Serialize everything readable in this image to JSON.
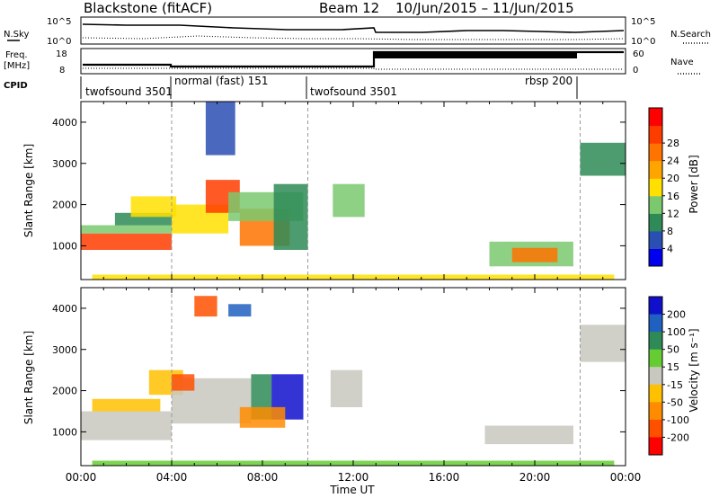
{
  "header": {
    "title": "Blackstone (fitACF)",
    "beam": "Beam 12",
    "date_range": "10/Jun/2015 – 11/Jun/2015"
  },
  "noise_panel": {
    "left_label": "N.Sky",
    "right_label": "N.Search",
    "left_ticks": [
      "10^5",
      "10^0"
    ],
    "right_ticks": [
      "10^5",
      "10^0"
    ]
  },
  "freq_panel": {
    "left_label_line1": "Freq.",
    "left_label_line2": "[MHz]",
    "right_label": "Nave",
    "left_ticks": [
      "18",
      "8"
    ],
    "right_ticks": [
      "60",
      "0"
    ]
  },
  "cpid_panel": {
    "label": "CPID",
    "segments": [
      {
        "start": 0,
        "end": 4,
        "name": "twofsound 3501"
      },
      {
        "start": 4,
        "end": 10,
        "name": "normal (fast) 151"
      },
      {
        "start": 10,
        "end": 22,
        "name": "twofsound 3501"
      },
      {
        "start": 22,
        "end": 24,
        "name": "rbsp 200"
      }
    ]
  },
  "colorbars": {
    "power": {
      "label": "Power [dB]",
      "ticks": [
        "4",
        "8",
        "12",
        "16",
        "20",
        "24",
        "28"
      ],
      "colors": [
        "#0000ee",
        "#2a4fb3",
        "#2e8b57",
        "#7bc96f",
        "#ffe000",
        "#ffa500",
        "#ff7300",
        "#ff3c00",
        "#ff0000"
      ]
    },
    "velocity": {
      "label": "Velocity [m s⁻¹]",
      "ticks": [
        "200",
        "100",
        "50",
        "15",
        "-15",
        "-50",
        "-100",
        "-200"
      ],
      "colors": [
        "#1010cc",
        "#2060c0",
        "#2e8b57",
        "#66cc33",
        "#c8c8c0",
        "#ffc000",
        "#ff8c00",
        "#ff5000",
        "#ff0000"
      ]
    }
  },
  "chart_data": [
    {
      "type": "heatmap",
      "title": "",
      "xlabel": "",
      "ylabel": "Slant Range [km]",
      "xlim": [
        0,
        24
      ],
      "ylim": [
        180,
        4500
      ],
      "x_tick_hours": [
        0,
        4,
        8,
        12,
        16,
        20,
        24
      ],
      "y_ticks": [
        1000,
        2000,
        3000,
        4000
      ],
      "colorbar": "Power [dB]",
      "regions": [
        {
          "t0": 0.0,
          "t1": 4.0,
          "r0": 900,
          "r1": 1300,
          "value": 28
        },
        {
          "t0": 0.0,
          "t1": 4.0,
          "r0": 1300,
          "r1": 1500,
          "value": 12
        },
        {
          "t0": 1.5,
          "t1": 4.0,
          "r0": 1500,
          "r1": 1800,
          "value": 10
        },
        {
          "t0": 2.2,
          "t1": 4.2,
          "r0": 1700,
          "r1": 2200,
          "value": 16
        },
        {
          "t0": 4.0,
          "t1": 6.5,
          "r0": 1300,
          "r1": 2000,
          "value": 16
        },
        {
          "t0": 5.5,
          "t1": 7.0,
          "r0": 1800,
          "r1": 2600,
          "value": 28
        },
        {
          "t0": 7.0,
          "t1": 9.2,
          "r0": 1000,
          "r1": 1900,
          "value": 24
        },
        {
          "t0": 6.5,
          "t1": 9.8,
          "r0": 1600,
          "r1": 2300,
          "value": 12
        },
        {
          "t0": 8.5,
          "t1": 10.0,
          "r0": 900,
          "r1": 2500,
          "value": 8
        },
        {
          "t0": 5.5,
          "t1": 6.8,
          "r0": 3200,
          "r1": 4500,
          "value": 6
        },
        {
          "t0": 11.1,
          "t1": 12.5,
          "r0": 1700,
          "r1": 2500,
          "value": 14
        },
        {
          "t0": 18.0,
          "t1": 21.7,
          "r0": 500,
          "r1": 1100,
          "value": 12
        },
        {
          "t0": 19.0,
          "t1": 21.0,
          "r0": 600,
          "r1": 950,
          "value": 26
        },
        {
          "t0": 22.0,
          "t1": 24.0,
          "r0": 2700,
          "r1": 3500,
          "value": 8
        },
        {
          "t0": 0.5,
          "t1": 23.5,
          "r0": 180,
          "r1": 300,
          "value": 16
        }
      ]
    },
    {
      "type": "heatmap",
      "title": "",
      "xlabel": "Time UT",
      "ylabel": "Slant Range [km]",
      "xlim": [
        0,
        24
      ],
      "ylim": [
        180,
        4500
      ],
      "x_tick_labels": [
        "00:00",
        "04:00",
        "08:00",
        "12:00",
        "16:00",
        "20:00",
        "00:00"
      ],
      "y_ticks": [
        1000,
        2000,
        3000,
        4000
      ],
      "colorbar": "Velocity [m s⁻¹]",
      "regions": [
        {
          "t0": 0.0,
          "t1": 4.0,
          "r0": 800,
          "r1": 1500,
          "value": 0
        },
        {
          "t0": 0.5,
          "t1": 3.5,
          "r0": 1500,
          "r1": 1800,
          "value": -30
        },
        {
          "t0": 3.0,
          "t1": 4.5,
          "r0": 1900,
          "r1": 2500,
          "value": -40
        },
        {
          "t0": 4.0,
          "t1": 7.5,
          "r0": 1200,
          "r1": 2300,
          "value": 0
        },
        {
          "t0": 4.0,
          "t1": 5.0,
          "r0": 2000,
          "r1": 2400,
          "value": -150
        },
        {
          "t0": 7.5,
          "t1": 8.4,
          "r0": 1300,
          "r1": 2400,
          "value": 60
        },
        {
          "t0": 8.4,
          "t1": 9.8,
          "r0": 1300,
          "r1": 2400,
          "value": 200
        },
        {
          "t0": 7.0,
          "t1": 9.0,
          "r0": 1100,
          "r1": 1600,
          "value": -80
        },
        {
          "t0": 6.5,
          "t1": 7.5,
          "r0": 3800,
          "r1": 4100,
          "value": 150
        },
        {
          "t0": 5.0,
          "t1": 6.0,
          "r0": 3800,
          "r1": 4300,
          "value": -200
        },
        {
          "t0": 11.0,
          "t1": 12.4,
          "r0": 1600,
          "r1": 2500,
          "value": 0
        },
        {
          "t0": 17.8,
          "t1": 21.7,
          "r0": 700,
          "r1": 1150,
          "value": 0
        },
        {
          "t0": 22.0,
          "t1": 24.0,
          "r0": 2700,
          "r1": 3600,
          "value": 0
        },
        {
          "t0": 0.5,
          "t1": 23.5,
          "r0": 180,
          "r1": 300,
          "value": 30
        }
      ]
    }
  ]
}
